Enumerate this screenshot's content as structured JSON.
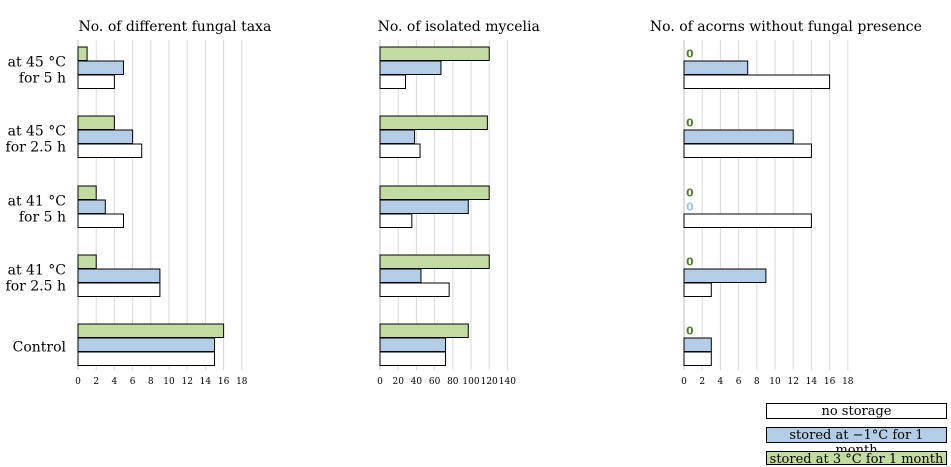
{
  "chart_data": {
    "type": "bar",
    "orientation": "horizontal",
    "categories": [
      "at 45 °C for 5 h",
      "at 45 °C for 2.5 h",
      "at 41 °C for 5 h",
      "at 41 °C for 2.5 h",
      "Control"
    ],
    "category_lines": [
      [
        "at 45 °C",
        "for 5 h"
      ],
      [
        "at 45 °C",
        "for 2.5 h"
      ],
      [
        "at 41 °C",
        "for 5 h"
      ],
      [
        "at 41 °C",
        "for 2.5 h"
      ],
      [
        "Control"
      ]
    ],
    "legend_placement": "bottom-right",
    "grid": "vertical, dashed",
    "colors": {
      "no_storage": "#ffffff",
      "stored_minus1": "#b4cde6",
      "stored_3": "#c2dba0",
      "zero_label_green": "#548235",
      "zero_label_blue": "#9dc3e6"
    },
    "legend": [
      "no storage",
      "stored at −1°C for 1 month",
      "stored at 3 °C for 1 month"
    ],
    "panels": [
      {
        "title": "No. of different fungal taxa",
        "xlim": [
          0,
          18
        ],
        "ticks": [
          "0",
          "2",
          "4",
          "6",
          "8",
          "10",
          "12",
          "14",
          "16",
          "18"
        ],
        "series": [
          {
            "name": "no storage",
            "values": [
              4,
              7,
              5,
              9,
              15
            ]
          },
          {
            "name": "stored at −1°C for 1 month",
            "values": [
              5,
              6,
              3,
              9,
              15
            ]
          },
          {
            "name": "stored at 3 °C for 1 month",
            "values": [
              1,
              4,
              2,
              2,
              16
            ]
          }
        ],
        "zero_labels": [
          [],
          [],
          [],
          [],
          []
        ]
      },
      {
        "title": "No. of isolated mycelia",
        "xlim": [
          0,
          140
        ],
        "ticks": [
          "0",
          "20",
          "40",
          "60",
          "80",
          "100",
          "120",
          "140"
        ],
        "series": [
          {
            "name": "no storage",
            "values": [
              28,
              44,
              35,
              76,
              72
            ]
          },
          {
            "name": "stored at −1°C for 1 month",
            "values": [
              67,
              38,
              97,
              45,
              72
            ]
          },
          {
            "name": "stored at 3 °C for 1 month",
            "values": [
              120,
              118,
              120,
              120,
              97
            ]
          }
        ],
        "zero_labels": [
          [],
          [],
          [],
          [],
          []
        ]
      },
      {
        "title": "No. of acorns without fungal presence",
        "xlim": [
          0,
          18
        ],
        "ticks": [
          "0",
          "2",
          "4",
          "6",
          "8",
          "10",
          "12",
          "14",
          "16",
          "18"
        ],
        "series": [
          {
            "name": "no storage",
            "values": [
              16,
              14,
              14,
              3,
              3
            ]
          },
          {
            "name": "stored at −1°C for 1 month",
            "values": [
              7,
              12,
              0,
              9,
              3
            ]
          },
          {
            "name": "stored at 3 °C for 1 month",
            "values": [
              0,
              0,
              0,
              0,
              0
            ]
          }
        ],
        "zero_labels": [
          [
            "0"
          ],
          [
            "0"
          ],
          [
            "0",
            "0"
          ],
          [
            "0"
          ],
          [
            "0"
          ]
        ]
      }
    ]
  }
}
